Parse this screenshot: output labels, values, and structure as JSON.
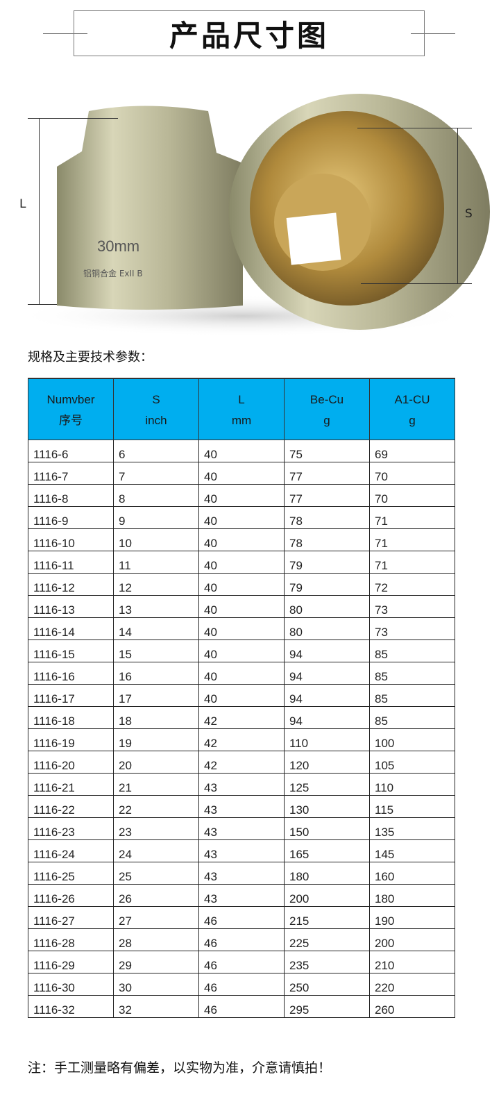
{
  "header": {
    "title": "产品尺寸图"
  },
  "photo": {
    "engraving_size": "30mm",
    "engraving_text": "铝铜合金 ExII B",
    "label_L": "L",
    "label_S": "S"
  },
  "subtitle": "规格及主要技术参数：",
  "table": {
    "header_color": "#00aeef",
    "columns": [
      {
        "line1": "Numvber",
        "line2": "序号"
      },
      {
        "line1": "S",
        "line2": "inch"
      },
      {
        "line1": "L",
        "line2": "mm"
      },
      {
        "line1": "Be-Cu",
        "line2": "g"
      },
      {
        "line1": "A1-CU",
        "line2": "g"
      }
    ],
    "rows": [
      [
        "1116-6",
        "6",
        "40",
        "75",
        "69"
      ],
      [
        "1116-7",
        "7",
        "40",
        "77",
        "70"
      ],
      [
        "1116-8",
        "8",
        "40",
        "77",
        "70"
      ],
      [
        "1116-9",
        "9",
        "40",
        "78",
        "71"
      ],
      [
        "1116-10",
        "10",
        "40",
        "78",
        "71"
      ],
      [
        "1116-11",
        "11",
        "40",
        "79",
        "71"
      ],
      [
        "1116-12",
        "12",
        "40",
        "79",
        "72"
      ],
      [
        "1116-13",
        "13",
        "40",
        "80",
        "73"
      ],
      [
        "1116-14",
        "14",
        "40",
        "80",
        "73"
      ],
      [
        "1116-15",
        "15",
        "40",
        "94",
        "85"
      ],
      [
        "1116-16",
        "16",
        "40",
        "94",
        "85"
      ],
      [
        "1116-17",
        "17",
        "40",
        "94",
        "85"
      ],
      [
        "1116-18",
        "18",
        "42",
        "94",
        "85"
      ],
      [
        "1116-19",
        "19",
        "42",
        "110",
        "100"
      ],
      [
        "1116-20",
        "20",
        "42",
        "120",
        "105"
      ],
      [
        "1116-21",
        "21",
        "43",
        "125",
        "110"
      ],
      [
        "1116-22",
        "22",
        "43",
        "130",
        "115"
      ],
      [
        "1116-23",
        "23",
        "43",
        "150",
        "135"
      ],
      [
        "1116-24",
        "24",
        "43",
        "165",
        "145"
      ],
      [
        "1116-25",
        "25",
        "43",
        "180",
        "160"
      ],
      [
        "1116-26",
        "26",
        "43",
        "200",
        "180"
      ],
      [
        "1116-27",
        "27",
        "46",
        "215",
        "190"
      ],
      [
        "1116-28",
        "28",
        "46",
        "225",
        "200"
      ],
      [
        "1116-29",
        "29",
        "46",
        "235",
        "210"
      ],
      [
        "1116-30",
        "30",
        "46",
        "250",
        "220"
      ],
      [
        "1116-32",
        "32",
        "46",
        "295",
        "260"
      ]
    ]
  },
  "note": "注：手工测量略有偏差，以实物为准，介意请慎拍！"
}
